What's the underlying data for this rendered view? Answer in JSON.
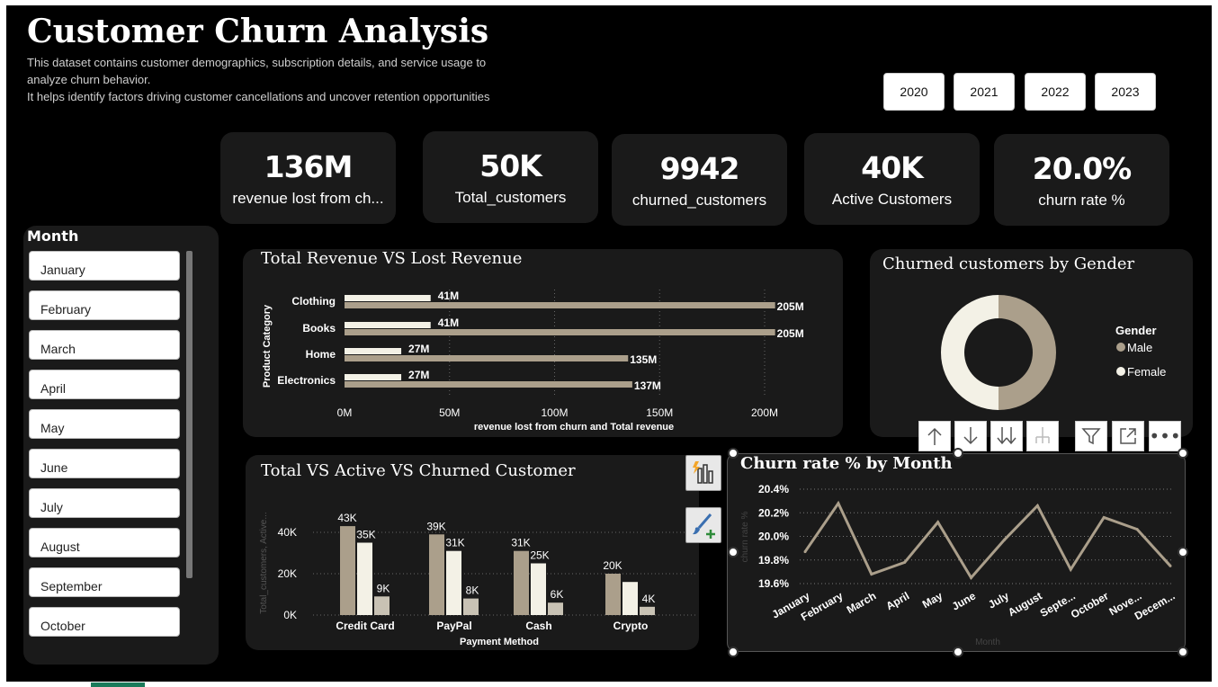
{
  "header": {
    "title": "Customer Churn Analysis",
    "desc_line1": "This dataset contains customer demographics, subscription details, and service usage to",
    "desc_line2": "analyze churn behavior.",
    "desc_line3": "It helps identify factors driving customer cancellations and uncover retention opportunities"
  },
  "years": [
    "2020",
    "2021",
    "2022",
    "2023"
  ],
  "kpis": [
    {
      "value": "136M",
      "label": "revenue lost from ch..."
    },
    {
      "value": "50K",
      "label": "Total_customers"
    },
    {
      "value": "9942",
      "label": "churned_customers"
    },
    {
      "value": "40K",
      "label": "Active Customers"
    },
    {
      "value": "20.0%",
      "label": "churn rate %"
    }
  ],
  "month_slicer": {
    "title": "Month",
    "items": [
      "January",
      "February",
      "March",
      "April",
      "May",
      "June",
      "July",
      "August",
      "September",
      "October"
    ]
  },
  "colors": {
    "tan": "#ab9f8b",
    "cream": "#f3f1e6",
    "card": "#1a1a1a",
    "line": "#ab9f8b"
  },
  "icons": [
    "arrow-up-icon",
    "arrow-down-icon",
    "double-arrow-down-icon",
    "expand-hierarchy-icon",
    "filter-icon",
    "focus-mode-icon",
    "more-options-icon",
    "smart-narrative-icon",
    "format-brush-icon"
  ],
  "chart_data": [
    {
      "type": "bar",
      "title": "Total Revenue VS Lost Revenue",
      "ylabel": "Product Category",
      "xlabel": "revenue lost from churn and Total revenue",
      "categories": [
        "Clothing",
        "Books",
        "Home",
        "Electronics"
      ],
      "series": [
        {
          "values": [
            41,
            41,
            27,
            27
          ],
          "labels": [
            "41M",
            "41M",
            "27M",
            "27M"
          ]
        },
        {
          "values": [
            205,
            205,
            135,
            137
          ],
          "labels": [
            "205M",
            "205M",
            "135M",
            "137M"
          ]
        }
      ],
      "xticks": [
        "0M",
        "50M",
        "100M",
        "150M",
        "200M"
      ],
      "xlim": [
        0,
        200
      ],
      "orientation": "horizontal"
    },
    {
      "type": "pie",
      "title": "Churned customers by Gender",
      "legend_title": "Gender",
      "categories": [
        "Male",
        "Female"
      ],
      "values": [
        50,
        50
      ],
      "legend": "right"
    },
    {
      "type": "bar",
      "title": "Total VS Active VS Churned Customer",
      "xlabel": "Payment Method",
      "ylabel": "Total_customers, Active...",
      "categories": [
        "Credit Card",
        "PayPal",
        "Cash",
        "Crypto"
      ],
      "series": [
        {
          "values": [
            43,
            39,
            31,
            20
          ],
          "labels": [
            "43K",
            "39K",
            "31K",
            "20K"
          ]
        },
        {
          "values": [
            35,
            31,
            25,
            16
          ],
          "labels": [
            "35K",
            "31K",
            "25K",
            ""
          ]
        },
        {
          "values": [
            9,
            8,
            6,
            4
          ],
          "labels": [
            "9K",
            "8K",
            "6K",
            "4K"
          ]
        }
      ],
      "yticks": [
        "0K",
        "20K",
        "40K"
      ],
      "ylim": [
        0,
        46
      ]
    },
    {
      "type": "line",
      "title": "Churn rate % by Month",
      "xlabel": "Month",
      "ylabel": "churn rate %",
      "categories": [
        "January",
        "February",
        "March",
        "April",
        "May",
        "June",
        "July",
        "August",
        "Septe...",
        "October",
        "Nove...",
        "Decem..."
      ],
      "values": [
        19.87,
        20.28,
        19.68,
        19.78,
        20.12,
        19.65,
        19.97,
        20.26,
        19.72,
        20.16,
        20.06,
        19.75
      ],
      "yticks": [
        "19.6%",
        "19.8%",
        "20.0%",
        "20.2%",
        "20.4%"
      ],
      "ylim": [
        19.6,
        20.4
      ],
      "grid": true
    }
  ]
}
